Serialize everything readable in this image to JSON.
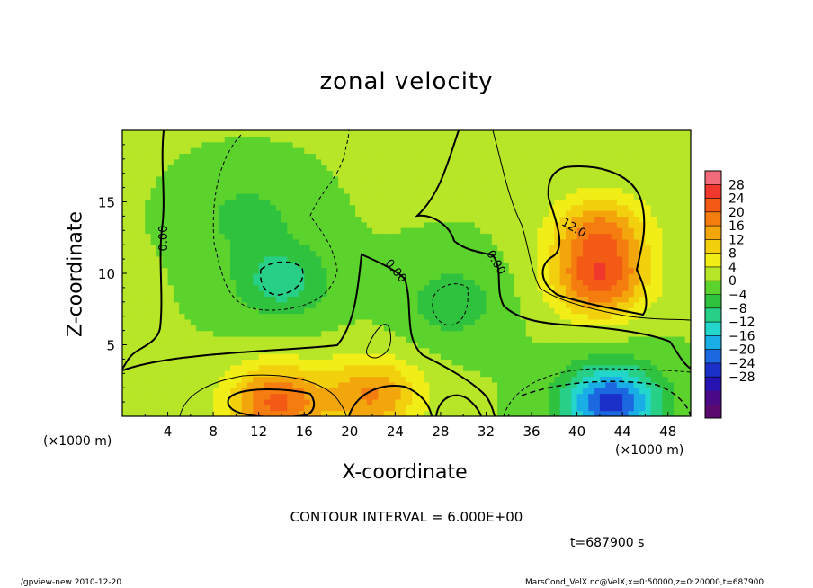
{
  "chart_data": {
    "type": "heatmap",
    "title": "zonal velocity",
    "xlabel": "X-coordinate",
    "ylabel": "Z-coordinate",
    "x_unit": "(×1000 m)",
    "xlim": [
      0,
      50
    ],
    "ylim": [
      0,
      20
    ],
    "x_ticks": [
      "4",
      "8",
      "12",
      "16",
      "20",
      "24",
      "28",
      "32",
      "36",
      "40",
      "44",
      "48"
    ],
    "y_ticks": [
      "5",
      "10",
      "15"
    ],
    "colorbar_ticks": [
      "28",
      "24",
      "20",
      "16",
      "12",
      "8",
      "4",
      "0",
      "−4",
      "−8",
      "−12",
      "−16",
      "−20",
      "−24",
      "−28"
    ],
    "colorbar_colors": [
      "#f26b7a",
      "#f0382e",
      "#f35a14",
      "#f57d10",
      "#f2a60c",
      "#f3d00e",
      "#f0ee16",
      "#b6e627",
      "#5cd22c",
      "#2fc23e",
      "#27cf87",
      "#22d6cc",
      "#1aaee6",
      "#1b68e0",
      "#1a30c8",
      "#2512b0",
      "#4a0a88",
      "#5a0a6e"
    ],
    "contour_interval": "CONTOUR INTERVAL = 6.000E+00",
    "time": "t=687900 s",
    "contour_labels": [
      "0.00",
      "0.00",
      "0.00",
      "12.0"
    ],
    "features": [
      {
        "kind": "max",
        "x": 42,
        "z": 13,
        "value": 14
      },
      {
        "kind": "max",
        "x": 42,
        "z": 9.5,
        "value": 18
      },
      {
        "kind": "max",
        "x": 13.5,
        "z": 1,
        "value": 18
      },
      {
        "kind": "max",
        "x": 22,
        "z": 1.5,
        "value": 14
      },
      {
        "kind": "min",
        "x": 14,
        "z": 9.5,
        "value": -9
      },
      {
        "kind": "min",
        "x": 11,
        "z": 14,
        "value": -5
      },
      {
        "kind": "min",
        "x": 29,
        "z": 8,
        "value": -6
      },
      {
        "kind": "min",
        "x": 43,
        "z": 1,
        "value": -22
      }
    ]
  },
  "footer": {
    "left": "./gpview-new  2010-12-20",
    "right": "MarsCond_VelX.nc@VelX,x=0:50000,z=0:20000,t=687900"
  }
}
